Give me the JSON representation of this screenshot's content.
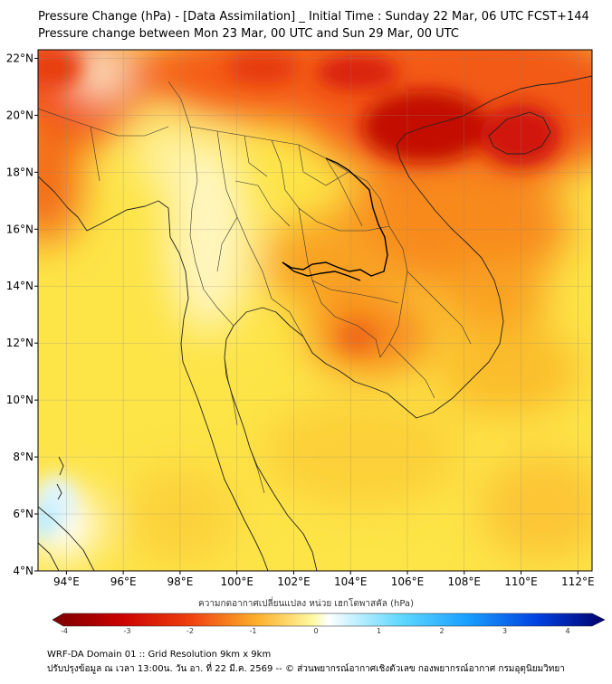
{
  "title": {
    "line1": "Pressure Change (hPa) - [Data Assimilation] _ Initial Time : Sunday 22 Mar, 06 UTC FCST+144",
    "line2": "Pressure change between Mon 23 Mar, 00 UTC and Sun 29 Mar, 00 UTC"
  },
  "map": {
    "lat_labels": [
      "22°N",
      "20°N",
      "18°N",
      "16°N",
      "14°N",
      "12°N",
      "10°N",
      "8°N",
      "6°N",
      "4°N"
    ],
    "lon_labels": [
      "94°E",
      "96°E",
      "98°E",
      "100°E",
      "102°E",
      "104°E",
      "106°E",
      "108°E",
      "110°E",
      "112°E"
    ],
    "lat_range": [
      4,
      22.3
    ],
    "lon_range": [
      93,
      112.5
    ],
    "colors": {
      "strong_fall": "#b80000",
      "fall": "#ef2a10",
      "moderate_fall": "#f77a1a",
      "weak_fall": "#fbb62a",
      "slight_fall": "#fde03a",
      "neutral": "#ffffff",
      "rise": "#9ae6ff"
    }
  },
  "colorbar": {
    "title": "ความกดอากาศเปลี่ยนแปลง หน่วย เฮกโตพาสคัล (hPa)",
    "labels": [
      "-4",
      "-3",
      "-2",
      "-1",
      "0",
      "1",
      "2",
      "3",
      "4"
    ]
  },
  "footer": {
    "line1": "WRF-DA Domain 01 :: Grid Resolution 9km x 9km",
    "line2": "ปรับปรุงข้อมูล ณ เวลา 13:00น. วัน อา. ที่ 22 มี.ค. 2569 -- © ส่วนพยากรณ์อากาศเชิงตัวเลข กองพยากรณ์อากาศ กรมอุตุนิยมวิทยา"
  }
}
